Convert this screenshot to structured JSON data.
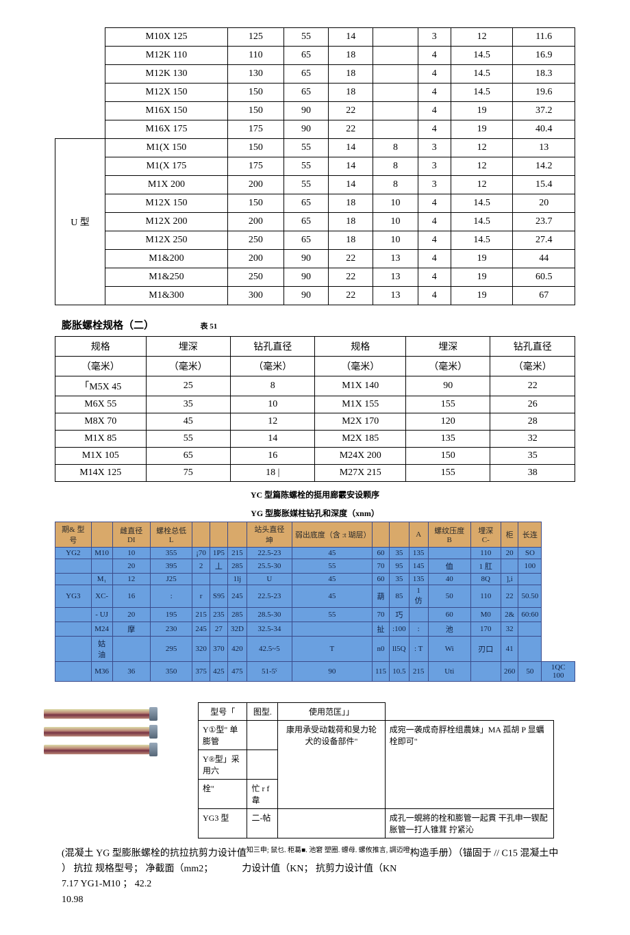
{
  "table1": {
    "group1": [
      [
        "M10X 125",
        "125",
        "55",
        "14",
        "",
        "3",
        "12",
        "11.6"
      ],
      [
        "M12K 110",
        "110",
        "65",
        "18",
        "",
        "4",
        "14.5",
        "16.9"
      ],
      [
        "M12K 130",
        "130",
        "65",
        "18",
        "",
        "4",
        "14.5",
        "18.3"
      ],
      [
        "M12X 150",
        "150",
        "65",
        "18",
        "",
        "4",
        "14.5",
        "19.6"
      ],
      [
        "M16X 150",
        "150",
        "90",
        "22",
        "",
        "4",
        "19",
        "37.2"
      ],
      [
        "M16X 175",
        "175",
        "90",
        "22",
        "",
        "4",
        "19",
        "40.4"
      ]
    ],
    "group2_label": "U 型",
    "group2": [
      [
        "M1(X 150",
        "150",
        "55",
        "14",
        "8",
        "3",
        "12",
        "13"
      ],
      [
        "M1(X 175",
        "175",
        "55",
        "14",
        "8",
        "3",
        "12",
        "14.2"
      ],
      [
        "M1X 200",
        "200",
        "55",
        "14",
        "8",
        "3",
        "12",
        "15.4"
      ],
      [
        "M12X 150",
        "150",
        "65",
        "18",
        "10",
        "4",
        "14.5",
        "20"
      ],
      [
        "M12X 200",
        "200",
        "65",
        "18",
        "10",
        "4",
        "14.5",
        "23.7"
      ],
      [
        "M12X 250",
        "250",
        "65",
        "18",
        "10",
        "4",
        "14.5",
        "27.4"
      ],
      [
        "M1&200",
        "200",
        "90",
        "22",
        "13",
        "4",
        "19",
        "44"
      ],
      [
        "M1&250",
        "250",
        "90",
        "22",
        "13",
        "4",
        "19",
        "60.5"
      ],
      [
        "M1&300",
        "300",
        "90",
        "22",
        "13",
        "4",
        "19",
        "67"
      ]
    ]
  },
  "section2": {
    "title": "膨胀螺栓规格（二）",
    "tableno": "表 51"
  },
  "table2": {
    "headers": [
      "规格",
      "埋深",
      "钻孔直径",
      "规格",
      "埋深",
      "钻孔直径"
    ],
    "units": [
      "（毫米）",
      "（毫米）",
      "（毫米）",
      "（毫米）",
      "（毫米）",
      "（毫米）"
    ],
    "rows": [
      [
        "「M5X 45",
        "25",
        "8",
        "M1X 140",
        "90",
        "22"
      ],
      [
        "M6X 55",
        "35",
        "10",
        "M1X 155",
        "155",
        "26"
      ],
      [
        "M8X 70",
        "45",
        "12",
        "M2X 170",
        "120",
        "28"
      ],
      [
        "M1X 85",
        "55",
        "14",
        "M2X 185",
        "135",
        "32"
      ],
      [
        "M1X 105",
        "65",
        "16",
        "M24X 200",
        "150",
        "35"
      ],
      [
        "M14X 125",
        "75",
        "18 |",
        "M27X 215",
        "155",
        "38"
      ]
    ]
  },
  "caption1": "YC 型篇陈螺栓的挺用廊霰安设颗序",
  "caption2": "YG 型膨胀媒柱钻孔和深度（xnm）",
  "table3": {
    "headers": [
      "期& 型号",
      "",
      "雌直径 DI",
      "螺栓总低 L",
      "",
      "",
      "",
      "站头直径 坤",
      "弱出底度（含 :t 瑚层）",
      "",
      "",
      "A",
      "螺纹压度 B",
      "埋深 C-",
      "柜",
      "长连"
    ],
    "rows": [
      [
        "YG2",
        "M10",
        "10",
        "355",
        "¡70",
        "1P5",
        "215",
        "22.5-23",
        "45",
        "60",
        "35",
        "135",
        "",
        "110",
        "20",
        "SO"
      ],
      [
        "",
        "",
        "20",
        "395",
        "2",
        "丄",
        "285",
        "25.5-30",
        "55",
        "70",
        "95",
        "145",
        "侐",
        "1 肛",
        "",
        "100"
      ],
      [
        "",
        "M₁",
        "12",
        "J25",
        "",
        "",
        "1lj",
        "U",
        "45",
        "60",
        "35",
        "135",
        "40",
        "8Q",
        "],i",
        ""
      ],
      [
        "YG3",
        "XC-",
        "16",
        ":",
        "r",
        "S95",
        "245",
        "22.5-23",
        "45",
        "葫",
        "85",
        "1 仿",
        "50",
        "110",
        "22",
        "50.50"
      ],
      [
        "",
        "- UJ",
        "20",
        "195",
        "215",
        "235",
        "285",
        "28.5-30",
        "55",
        "70",
        "巧",
        "",
        "60",
        "M0",
        "2&",
        "60:60"
      ],
      [
        "",
        "M24",
        "摩",
        "230",
        "245",
        "27",
        "32D",
        "32.5-34",
        "",
        "扯",
        ":100",
        ":",
        "池",
        "170",
        "32",
        ""
      ],
      [
        "",
        "姑油",
        "",
        "295",
        "320",
        "370",
        "420",
        "42.5~5",
        "T",
        "n0",
        "ll5Q",
        ": T",
        "Wi",
        "刃口",
        "41",
        ""
      ],
      [
        "",
        "M36",
        "36",
        "350",
        "375",
        "425",
        "475",
        "51-5ˤ",
        "90",
        "115",
        "10.5",
        "215",
        "Uti",
        "",
        "260",
        "50",
        "1QC 100"
      ]
    ]
  },
  "table4": {
    "headers": [
      "型号「",
      "图型.",
      "使用范匡」」"
    ],
    "rows": [
      [
        "Y①型\" 单 膨管",
        "",
        "",
        ""
      ],
      [
        "Y®型」采用六",
        "",
        "康用承受动栽荷和旻力轮犬的设备部件\"",
        "成宛一袭成奇脬栓组農妹」MA 孤胡 P 显蠣栓即可\""
      ],
      [
        "栓\"",
        "忙 r f 韋",
        "",
        ""
      ],
      [
        "YG3 型",
        "二-帖",
        "",
        "成孔一蜆將的栓和膨管一起貫 干孔申一锲配胀管一打人锥茸 拧紧沁"
      ]
    ]
  },
  "footer": {
    "line1": "(混凝土 YG 型膨胀螺栓的抗拉抗剪力设计值",
    "line1b": "知三申; 鼠乜. 秬葛■. 池窘 塑圈. 螵母. 螺攸推言, 調迈噔",
    "line1c": "构造手册）（锚固于 // C15 混凝土中",
    "line2": "） 抗拉 规格型号； 净截面（mm2；",
    "line2b": "力设计值（KN； 抗剪力设计值（KN",
    "line3": "7.17   YG1-M10 ；  42.2",
    "line4": "10.98"
  }
}
